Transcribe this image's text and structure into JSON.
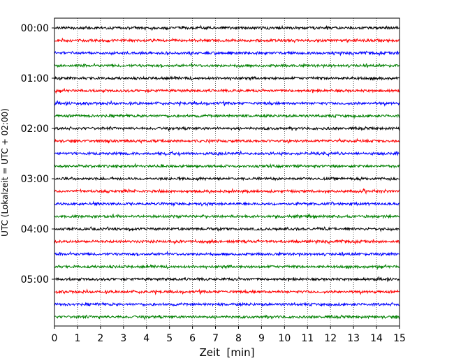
{
  "chart_data": {
    "type": "line",
    "title": "",
    "xlabel": "Zeit  [min]",
    "ylabel": "UTC (Lokalzeit = UTC + 02:00)",
    "xlim": [
      0,
      15
    ],
    "x_ticks": [
      0,
      1,
      2,
      3,
      4,
      5,
      6,
      7,
      8,
      9,
      10,
      11,
      12,
      13,
      14,
      15
    ],
    "x_tick_labels": [
      "0",
      "1",
      "2",
      "3",
      "4",
      "5",
      "6",
      "7",
      "8",
      "9",
      "10",
      "11",
      "12",
      "13",
      "14",
      "15"
    ],
    "x_grid": "dotted",
    "trace_interval_minutes": 15,
    "y_tick_labels": [
      "00:00",
      "01:00",
      "02:00",
      "03:00",
      "04:00",
      "05:00"
    ],
    "y_tick_trace_index": [
      0,
      4,
      8,
      12,
      16,
      20
    ],
    "trace_start_times": [
      "00:00",
      "00:15",
      "00:30",
      "00:45",
      "01:00",
      "01:15",
      "01:30",
      "01:45",
      "02:00",
      "02:15",
      "02:30",
      "02:45",
      "03:00",
      "03:15",
      "03:30",
      "03:45",
      "04:00",
      "04:15",
      "04:30",
      "04:45",
      "05:00",
      "05:15",
      "05:30",
      "05:45"
    ],
    "trace_colors": [
      "#000000",
      "#ff0000",
      "#0000ff",
      "#008000"
    ],
    "legend": "none"
  }
}
